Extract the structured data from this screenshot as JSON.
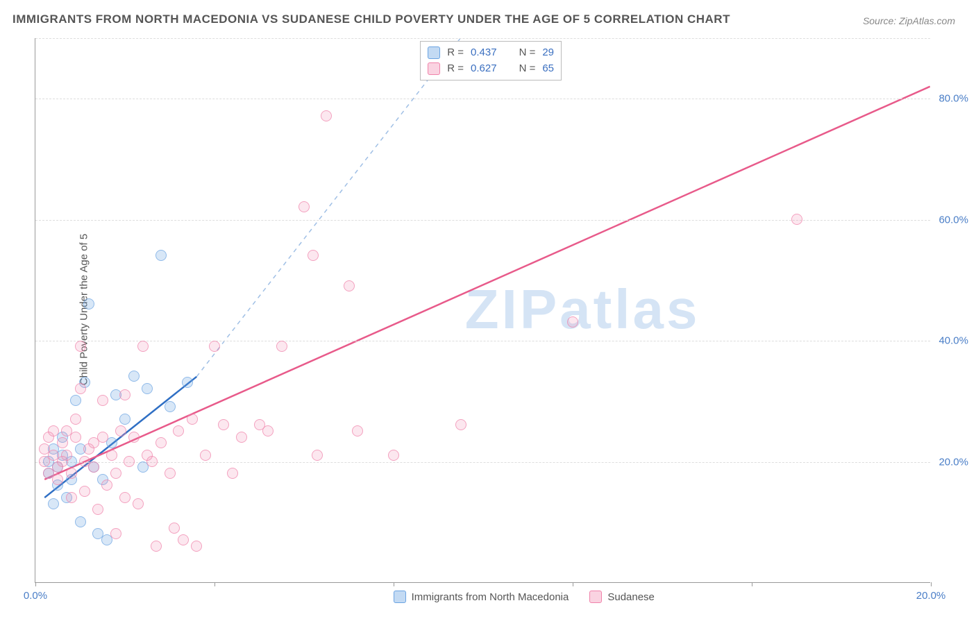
{
  "title": "IMMIGRANTS FROM NORTH MACEDONIA VS SUDANESE CHILD POVERTY UNDER THE AGE OF 5 CORRELATION CHART",
  "source": "Source: ZipAtlas.com",
  "ylabel": "Child Poverty Under the Age of 5",
  "watermark": "ZIPatlas",
  "chart": {
    "type": "scatter",
    "xlim": [
      0,
      20.0
    ],
    "ylim": [
      0,
      90.0
    ],
    "xticks": [
      0.0,
      4.0,
      8.0,
      12.0,
      16.0,
      20.0
    ],
    "xtick_labels": [
      "0.0%",
      "",
      "",
      "",
      "",
      "20.0%"
    ],
    "yticks": [
      20.0,
      40.0,
      60.0,
      80.0
    ],
    "ytick_labels": [
      "20.0%",
      "40.0%",
      "60.0%",
      "80.0%"
    ],
    "grid_color": "#dddddd",
    "background_color": "#ffffff",
    "point_radius": 8,
    "series": [
      {
        "name": "Immigrants from North Macedonia",
        "color": "#6aa3e2",
        "fill": "rgba(106,163,226,0.35)",
        "R": "0.437",
        "N": "29",
        "trend": {
          "x1": 0.2,
          "y1": 14.0,
          "x2": 3.6,
          "y2": 34.0,
          "dash_to_x": 9.5,
          "dash_to_y": 90.0
        },
        "points": [
          [
            0.3,
            18
          ],
          [
            0.3,
            20
          ],
          [
            0.4,
            22
          ],
          [
            0.5,
            19
          ],
          [
            0.5,
            16
          ],
          [
            0.6,
            21
          ],
          [
            0.6,
            24
          ],
          [
            0.7,
            14
          ],
          [
            0.8,
            20
          ],
          [
            0.8,
            17
          ],
          [
            0.9,
            30
          ],
          [
            1.0,
            22
          ],
          [
            1.0,
            10
          ],
          [
            1.1,
            33
          ],
          [
            1.2,
            46
          ],
          [
            1.3,
            19
          ],
          [
            1.4,
            8
          ],
          [
            1.5,
            17
          ],
          [
            1.6,
            7
          ],
          [
            1.7,
            23
          ],
          [
            1.8,
            31
          ],
          [
            2.0,
            27
          ],
          [
            2.2,
            34
          ],
          [
            2.4,
            19
          ],
          [
            2.5,
            32
          ],
          [
            2.8,
            54
          ],
          [
            3.0,
            29
          ],
          [
            3.4,
            33
          ],
          [
            0.4,
            13
          ]
        ]
      },
      {
        "name": "Sudanese",
        "color": "#f082aa",
        "fill": "rgba(240,130,170,0.25)",
        "R": "0.627",
        "N": "65",
        "trend": {
          "x1": 0.2,
          "y1": 17.0,
          "x2": 20.0,
          "y2": 82.0
        },
        "points": [
          [
            0.2,
            20
          ],
          [
            0.2,
            22
          ],
          [
            0.3,
            24
          ],
          [
            0.3,
            18
          ],
          [
            0.4,
            21
          ],
          [
            0.4,
            25
          ],
          [
            0.5,
            19
          ],
          [
            0.5,
            17
          ],
          [
            0.6,
            23
          ],
          [
            0.6,
            20
          ],
          [
            0.7,
            25
          ],
          [
            0.7,
            21
          ],
          [
            0.8,
            18
          ],
          [
            0.8,
            14
          ],
          [
            0.9,
            24
          ],
          [
            0.9,
            27
          ],
          [
            1.0,
            32
          ],
          [
            1.0,
            39
          ],
          [
            1.1,
            20
          ],
          [
            1.1,
            15
          ],
          [
            1.2,
            22
          ],
          [
            1.3,
            23
          ],
          [
            1.3,
            19
          ],
          [
            1.4,
            12
          ],
          [
            1.5,
            30
          ],
          [
            1.5,
            24
          ],
          [
            1.6,
            16
          ],
          [
            1.7,
            21
          ],
          [
            1.8,
            18
          ],
          [
            1.8,
            8
          ],
          [
            1.9,
            25
          ],
          [
            2.0,
            14
          ],
          [
            2.0,
            31
          ],
          [
            2.1,
            20
          ],
          [
            2.2,
            24
          ],
          [
            2.3,
            13
          ],
          [
            2.4,
            39
          ],
          [
            2.5,
            21
          ],
          [
            2.6,
            20
          ],
          [
            2.7,
            6
          ],
          [
            2.8,
            23
          ],
          [
            3.0,
            18
          ],
          [
            3.1,
            9
          ],
          [
            3.2,
            25
          ],
          [
            3.3,
            7
          ],
          [
            3.5,
            27
          ],
          [
            3.6,
            6
          ],
          [
            3.8,
            21
          ],
          [
            4.0,
            39
          ],
          [
            4.2,
            26
          ],
          [
            4.4,
            18
          ],
          [
            4.6,
            24
          ],
          [
            5.0,
            26
          ],
          [
            5.2,
            25
          ],
          [
            5.5,
            39
          ],
          [
            6.0,
            62
          ],
          [
            6.2,
            54
          ],
          [
            6.5,
            77
          ],
          [
            7.0,
            49
          ],
          [
            7.2,
            25
          ],
          [
            8.0,
            21
          ],
          [
            9.5,
            26
          ],
          [
            12.0,
            43
          ],
          [
            17.0,
            60
          ],
          [
            6.3,
            21
          ]
        ]
      }
    ]
  },
  "legend": {
    "series1": "Immigrants from North Macedonia",
    "series2": "Sudanese"
  },
  "stats": {
    "r_label": "R =",
    "n_label": "N ="
  }
}
